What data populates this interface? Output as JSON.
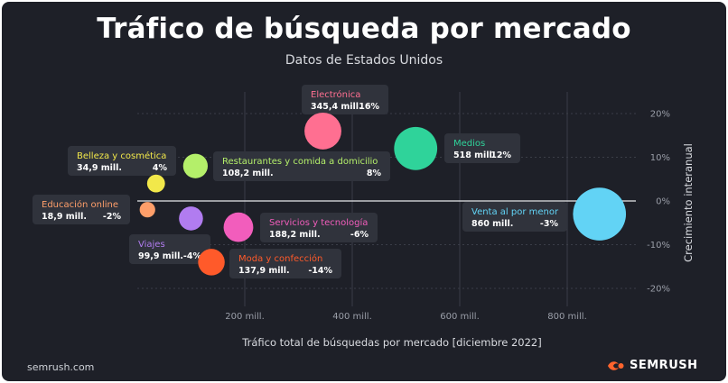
{
  "title": "Tráfico de búsqueda por mercado",
  "subtitle": "Datos de Estados Unidos",
  "footer": {
    "site": "semrush.com",
    "brand": "SEMRUSH"
  },
  "colors": {
    "background": "#1e2028",
    "label_box": "#30333c",
    "grid": "#3a3d47",
    "baseline": "#e8e9ec"
  },
  "chart_data": {
    "type": "scatter",
    "xlabel": "Tráfico total de búsquedas por mercado [diciembre 2022]",
    "ylabel": "Crecimiento interanual",
    "xlim": [
      0,
      900
    ],
    "ylim": [
      -20,
      20
    ],
    "x_ticks": [
      {
        "value": 200,
        "label": "200 mill."
      },
      {
        "value": 400,
        "label": "400 mill."
      },
      {
        "value": 600,
        "label": "600 mill."
      },
      {
        "value": 800,
        "label": "800 mill."
      }
    ],
    "y_ticks": [
      {
        "value": 20,
        "label": "20%"
      },
      {
        "value": 10,
        "label": "10%"
      },
      {
        "value": 0,
        "label": "0%"
      },
      {
        "value": -10,
        "label": "-10%"
      },
      {
        "value": -20,
        "label": "-20%"
      }
    ],
    "points": [
      {
        "name": "Electrónica",
        "traffic": "345,4 mill.",
        "growth": "16%",
        "x": 345.4,
        "y": 16,
        "color": "#ff6f91"
      },
      {
        "name": "Medios",
        "traffic": "518 mill.",
        "growth": "12%",
        "x": 518,
        "y": 12,
        "color": "#2fd39a"
      },
      {
        "name": "Belleza y cosmética",
        "traffic": "34,9 mill.",
        "growth": "4%",
        "x": 34.9,
        "y": 4,
        "color": "#f2e84a"
      },
      {
        "name": "Restaurantes y comida a domicilio",
        "traffic": "108,2 mill.",
        "growth": "8%",
        "x": 108.2,
        "y": 8,
        "color": "#b4ef6a"
      },
      {
        "name": "Educación online",
        "traffic": "18,9 mill.",
        "growth": "-2%",
        "x": 18.9,
        "y": -2,
        "color": "#ff9f6a"
      },
      {
        "name": "Venta al por menor",
        "traffic": "860 mill.",
        "growth": "-3%",
        "x": 860,
        "y": -3,
        "color": "#62d3f5"
      },
      {
        "name": "Servicios y tecnología",
        "traffic": "188,2 mill.",
        "growth": "-6%",
        "x": 188.2,
        "y": -6,
        "color": "#f25dbc"
      },
      {
        "name": "Viajes",
        "traffic": "99,9 mill.",
        "growth": "-4%",
        "x": 99.9,
        "y": -4,
        "color": "#b17cf0"
      },
      {
        "name": "Moda y confección",
        "traffic": "137,9 mill.",
        "growth": "-14%",
        "x": 137.9,
        "y": -14,
        "color": "#ff5a2a"
      }
    ]
  }
}
